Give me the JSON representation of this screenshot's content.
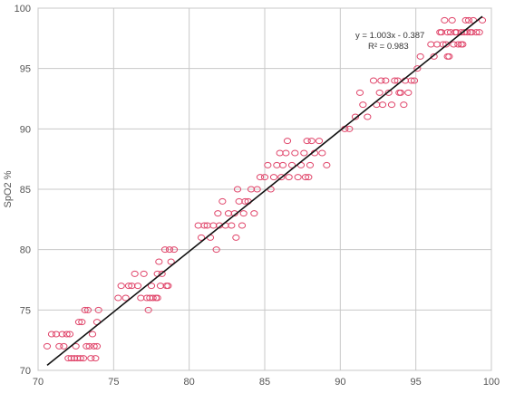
{
  "chart_data": {
    "type": "scatter",
    "title": "",
    "xlabel": "",
    "ylabel": "SpO2 %",
    "xlim": [
      70,
      100
    ],
    "ylim": [
      70,
      100
    ],
    "xticks": [
      70,
      75,
      80,
      85,
      90,
      95,
      100
    ],
    "yticks": [
      70,
      75,
      80,
      85,
      90,
      95,
      100
    ],
    "grid": true,
    "marker_color": "#e0456a",
    "trendline_color": "#111111",
    "trendline": {
      "slope": 1.003,
      "intercept": -0.387,
      "r2": 0.983
    },
    "equation_text": "y = 1.003x - 0.387",
    "r2_text": "R² = 0.983",
    "points": [
      [
        70.6,
        72
      ],
      [
        70.9,
        73
      ],
      [
        71.2,
        73
      ],
      [
        71.4,
        72
      ],
      [
        71.6,
        73
      ],
      [
        71.7,
        72
      ],
      [
        71.9,
        73
      ],
      [
        72.0,
        71
      ],
      [
        72.1,
        73
      ],
      [
        72.2,
        71
      ],
      [
        72.4,
        71
      ],
      [
        72.5,
        72
      ],
      [
        72.6,
        71
      ],
      [
        72.7,
        74
      ],
      [
        72.8,
        71
      ],
      [
        72.9,
        74
      ],
      [
        73.0,
        71
      ],
      [
        73.1,
        75
      ],
      [
        73.2,
        72
      ],
      [
        73.3,
        75
      ],
      [
        73.4,
        72
      ],
      [
        73.5,
        71
      ],
      [
        73.6,
        73
      ],
      [
        73.7,
        72
      ],
      [
        73.8,
        71
      ],
      [
        73.9,
        72
      ],
      [
        74.0,
        75
      ],
      [
        73.9,
        74
      ],
      [
        75.3,
        76
      ],
      [
        75.5,
        77
      ],
      [
        75.8,
        76
      ],
      [
        76.0,
        77
      ],
      [
        76.2,
        77
      ],
      [
        76.4,
        78
      ],
      [
        76.6,
        77
      ],
      [
        76.8,
        76
      ],
      [
        77.0,
        78
      ],
      [
        77.2,
        76
      ],
      [
        77.3,
        75
      ],
      [
        77.4,
        76
      ],
      [
        77.5,
        77
      ],
      [
        77.6,
        76
      ],
      [
        77.8,
        76
      ],
      [
        77.9,
        78
      ],
      [
        78.0,
        79
      ],
      [
        78.1,
        77
      ],
      [
        78.2,
        78
      ],
      [
        78.4,
        80
      ],
      [
        78.6,
        77
      ],
      [
        78.7,
        80
      ],
      [
        78.8,
        79
      ],
      [
        79.0,
        80
      ],
      [
        77.9,
        76
      ],
      [
        78.5,
        77
      ],
      [
        80.6,
        82
      ],
      [
        80.8,
        81
      ],
      [
        81.0,
        82
      ],
      [
        81.2,
        82
      ],
      [
        81.4,
        81
      ],
      [
        81.6,
        82
      ],
      [
        81.8,
        80
      ],
      [
        81.9,
        83
      ],
      [
        82.0,
        82
      ],
      [
        82.2,
        84
      ],
      [
        82.4,
        82
      ],
      [
        82.6,
        83
      ],
      [
        82.8,
        82
      ],
      [
        83.0,
        83
      ],
      [
        83.2,
        85
      ],
      [
        83.3,
        84
      ],
      [
        83.5,
        82
      ],
      [
        83.7,
        84
      ],
      [
        83.9,
        84
      ],
      [
        84.1,
        85
      ],
      [
        84.3,
        83
      ],
      [
        84.5,
        85
      ],
      [
        84.7,
        86
      ],
      [
        83.1,
        81
      ],
      [
        83.6,
        83
      ],
      [
        85.0,
        86
      ],
      [
        85.2,
        87
      ],
      [
        85.4,
        85
      ],
      [
        85.6,
        86
      ],
      [
        85.8,
        87
      ],
      [
        86.0,
        88
      ],
      [
        86.1,
        86
      ],
      [
        86.2,
        87
      ],
      [
        86.4,
        88
      ],
      [
        86.6,
        86
      ],
      [
        86.8,
        87
      ],
      [
        87.0,
        88
      ],
      [
        87.2,
        86
      ],
      [
        87.4,
        87
      ],
      [
        87.6,
        88
      ],
      [
        87.7,
        86
      ],
      [
        87.8,
        89
      ],
      [
        88.0,
        87
      ],
      [
        88.1,
        89
      ],
      [
        88.3,
        88
      ],
      [
        88.6,
        89
      ],
      [
        88.8,
        88
      ],
      [
        89.1,
        87
      ],
      [
        86.5,
        89
      ],
      [
        87.9,
        86
      ],
      [
        90.3,
        90
      ],
      [
        90.6,
        90
      ],
      [
        91.0,
        91
      ],
      [
        91.3,
        93
      ],
      [
        91.5,
        92
      ],
      [
        91.8,
        91
      ],
      [
        92.2,
        94
      ],
      [
        92.4,
        92
      ],
      [
        92.6,
        93
      ],
      [
        92.8,
        92
      ],
      [
        93.0,
        94
      ],
      [
        93.2,
        93
      ],
      [
        93.4,
        92
      ],
      [
        93.6,
        94
      ],
      [
        93.8,
        94
      ],
      [
        94.0,
        93
      ],
      [
        94.2,
        92
      ],
      [
        94.3,
        94
      ],
      [
        94.5,
        93
      ],
      [
        94.7,
        94
      ],
      [
        94.9,
        94
      ],
      [
        95.1,
        95
      ],
      [
        95.3,
        96
      ],
      [
        92.7,
        94
      ],
      [
        93.9,
        93
      ],
      [
        96.0,
        97
      ],
      [
        96.2,
        96
      ],
      [
        96.4,
        97
      ],
      [
        96.6,
        98
      ],
      [
        96.7,
        98
      ],
      [
        96.8,
        97
      ],
      [
        96.9,
        99
      ],
      [
        97.0,
        97
      ],
      [
        97.1,
        98
      ],
      [
        97.2,
        96
      ],
      [
        97.3,
        98
      ],
      [
        97.4,
        99
      ],
      [
        97.5,
        97
      ],
      [
        97.6,
        98
      ],
      [
        97.7,
        98
      ],
      [
        97.8,
        97
      ],
      [
        98.0,
        98
      ],
      [
        98.1,
        97
      ],
      [
        98.2,
        98
      ],
      [
        98.3,
        99
      ],
      [
        98.4,
        98
      ],
      [
        98.5,
        99
      ],
      [
        98.6,
        98
      ],
      [
        98.7,
        98
      ],
      [
        98.8,
        99
      ],
      [
        99.0,
        98
      ],
      [
        99.2,
        98
      ],
      [
        99.4,
        99
      ],
      [
        97.1,
        96
      ],
      [
        98.0,
        97
      ]
    ]
  }
}
